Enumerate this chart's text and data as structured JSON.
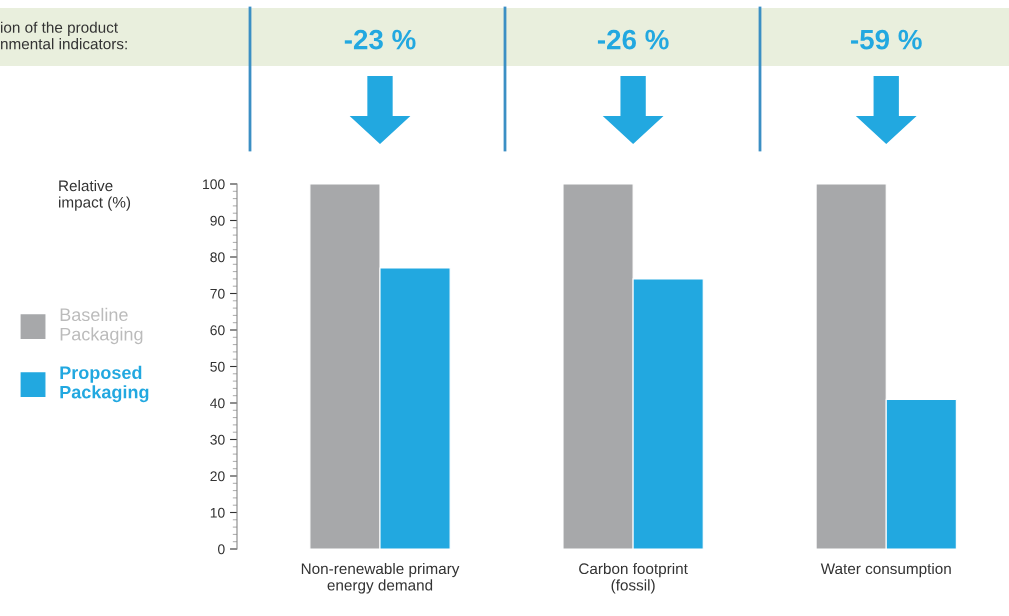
{
  "chart_data": {
    "type": "bar",
    "categories": [
      "Non-renewable primary\nenergy demand",
      "Carbon footprint\n(fossil)",
      "Water consumption"
    ],
    "series": [
      {
        "name": "Baseline\nPackaging",
        "color": "#a7a8aa",
        "values": [
          100,
          100,
          100
        ]
      },
      {
        "name": "Proposed\nPackaging",
        "color": "#22a8e0",
        "values": [
          77,
          74,
          41
        ]
      }
    ],
    "ylabel": "Relative\nimpact (%)",
    "ylim": [
      0,
      100
    ],
    "yticks": [
      0,
      10,
      20,
      30,
      40,
      50,
      60,
      70,
      80,
      90,
      100
    ],
    "annotations": [
      "ion of the product\nnmental indicators:",
      "-23 %",
      "-26 %",
      "-59 %"
    ],
    "grid": false,
    "legend": "left"
  }
}
